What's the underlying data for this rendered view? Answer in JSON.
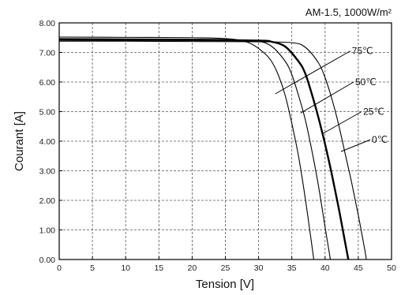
{
  "chart_data": {
    "type": "line",
    "condition": "AM-1.5, 1000W/m²",
    "xlabel": "Tension [V]",
    "ylabel": "Courant [A]",
    "xlim": [
      0,
      50
    ],
    "ylim": [
      0,
      8
    ],
    "x_ticks": [
      "0",
      "5",
      "10",
      "15",
      "20",
      "25",
      "30",
      "35",
      "40",
      "45",
      "50"
    ],
    "y_ticks": [
      "0.00",
      "1.00",
      "2.00",
      "3.00",
      "4.00",
      "5.00",
      "6.00",
      "7.00",
      "8.00"
    ],
    "grid": true,
    "series": [
      {
        "name": "75℃",
        "bold": false,
        "points": [
          [
            0,
            7.52
          ],
          [
            10,
            7.51
          ],
          [
            20,
            7.5
          ],
          [
            25,
            7.47
          ],
          [
            27,
            7.42
          ],
          [
            29,
            7.28
          ],
          [
            31,
            6.95
          ],
          [
            32,
            6.68
          ],
          [
            33,
            6.22
          ],
          [
            34,
            5.55
          ],
          [
            35,
            4.6
          ],
          [
            36,
            3.5
          ],
          [
            37,
            2.1
          ],
          [
            38,
            0.5
          ],
          [
            38.3,
            0
          ]
        ]
      },
      {
        "name": "50℃",
        "bold": false,
        "points": [
          [
            0,
            7.47
          ],
          [
            10,
            7.46
          ],
          [
            20,
            7.45
          ],
          [
            27,
            7.43
          ],
          [
            30,
            7.38
          ],
          [
            32,
            7.2
          ],
          [
            34,
            6.7
          ],
          [
            35,
            6.25
          ],
          [
            36,
            5.55
          ],
          [
            37,
            4.75
          ],
          [
            38,
            3.7
          ],
          [
            39,
            2.5
          ],
          [
            40,
            1.1
          ],
          [
            40.8,
            0
          ]
        ]
      },
      {
        "name": "25℃",
        "bold": true,
        "points": [
          [
            0,
            7.43
          ],
          [
            10,
            7.42
          ],
          [
            20,
            7.42
          ],
          [
            30,
            7.4
          ],
          [
            32,
            7.36
          ],
          [
            34,
            7.2
          ],
          [
            36,
            6.7
          ],
          [
            37,
            6.3
          ],
          [
            38,
            5.6
          ],
          [
            39,
            4.8
          ],
          [
            40,
            3.9
          ],
          [
            41,
            2.9
          ],
          [
            42,
            1.8
          ],
          [
            43,
            0.6
          ],
          [
            43.5,
            0
          ]
        ]
      },
      {
        "name": "0℃",
        "bold": false,
        "points": [
          [
            0,
            7.38
          ],
          [
            10,
            7.38
          ],
          [
            20,
            7.37
          ],
          [
            30,
            7.36
          ],
          [
            35,
            7.33
          ],
          [
            37,
            7.18
          ],
          [
            39,
            6.65
          ],
          [
            40,
            6.15
          ],
          [
            41,
            5.45
          ],
          [
            42,
            4.6
          ],
          [
            43,
            3.6
          ],
          [
            44,
            2.6
          ],
          [
            45,
            1.5
          ],
          [
            46,
            0.3
          ],
          [
            46.2,
            0
          ]
        ]
      }
    ],
    "annotations": [
      {
        "series": "75℃",
        "text": "75℃",
        "leader_from": [
          32.5,
          5.6
        ],
        "leader_to": [
          43.8,
          7.05
        ]
      },
      {
        "series": "50℃",
        "text": "50℃",
        "leader_from": [
          36.3,
          4.95
        ],
        "leader_to": [
          44.3,
          6.0
        ]
      },
      {
        "series": "25℃",
        "text": "25℃",
        "leader_from": [
          39.6,
          4.25
        ],
        "leader_to": [
          45.5,
          5.0
        ]
      },
      {
        "series": "0℃",
        "text": "0℃",
        "leader_from": [
          42.4,
          3.65
        ],
        "leader_to": [
          46.8,
          4.05
        ]
      }
    ]
  }
}
